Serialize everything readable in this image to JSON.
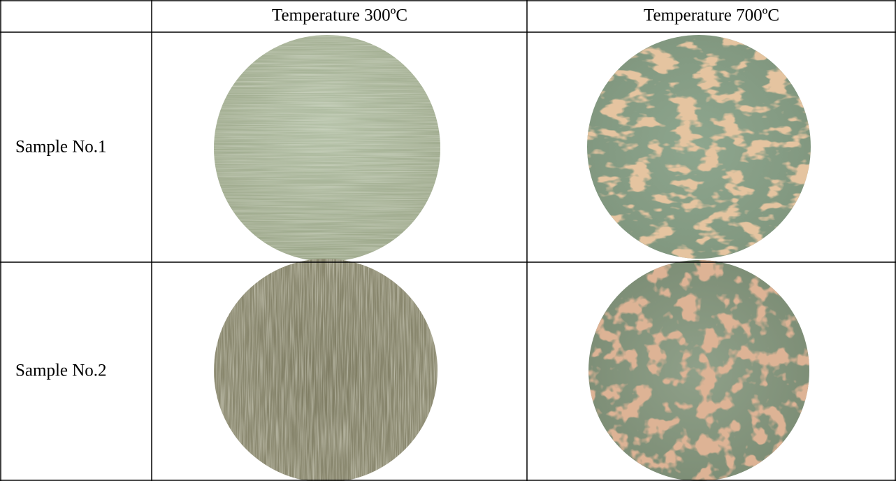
{
  "table": {
    "header": [
      "Temperature 300ºC",
      "Temperature 700ºC"
    ],
    "rows": [
      {
        "label": "Sample No.1"
      },
      {
        "label": "Sample No.2"
      }
    ]
  }
}
